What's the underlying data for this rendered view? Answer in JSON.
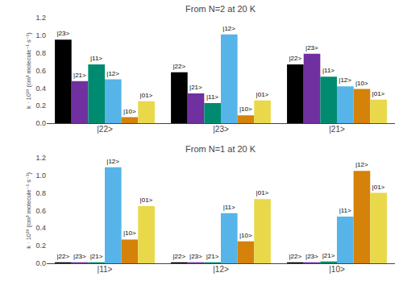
{
  "chart_data": [
    {
      "type": "bar",
      "title": "From N=2 at 20 K",
      "categories": [
        "|22>",
        "|23>",
        "|21>"
      ],
      "series": [
        {
          "color": "#000000",
          "values": [
            0.95,
            0.58,
            0.67
          ],
          "labels": [
            "|23>",
            "|22>",
            "|22>"
          ]
        },
        {
          "color": "#7030A0",
          "values": [
            0.48,
            0.34,
            0.79
          ],
          "labels": [
            "|21>",
            "|21>",
            "|23>"
          ]
        },
        {
          "color": "#008B70",
          "values": [
            0.67,
            0.23,
            0.53
          ],
          "labels": [
            "|11>",
            "|11>",
            "|11>"
          ]
        },
        {
          "color": "#56B4E9",
          "values": [
            0.5,
            1.01,
            0.42
          ],
          "labels": [
            "|12>",
            "|12>",
            "|12>"
          ]
        },
        {
          "color": "#D4820A",
          "values": [
            0.07,
            0.09,
            0.39
          ],
          "labels": [
            "|10>",
            "|10>",
            "|10>"
          ]
        },
        {
          "color": "#E8D84A",
          "values": [
            0.25,
            0.26,
            0.27
          ],
          "labels": [
            "|01>",
            "|01>",
            "|01>"
          ]
        }
      ],
      "ylabel": "k · 10¹⁰ (cm³ molecule⁻¹ s⁻¹)",
      "ylim": [
        0,
        1.2
      ],
      "yticks": [
        {
          "value": 0,
          "label": "0.0"
        },
        0.2,
        0.4,
        0.6,
        0.8,
        {
          "value": 1.0,
          "label": "1.0"
        },
        1.2
      ],
      "grid": false
    },
    {
      "type": "bar",
      "title": "From N=1 at 20 K",
      "categories": [
        "|11>",
        "|12>",
        "|10>"
      ],
      "series": [
        {
          "color": "#000000",
          "values": [
            0.01,
            0.01,
            0.01
          ],
          "labels": [
            "|22>",
            "|22>",
            "|22>"
          ]
        },
        {
          "color": "#7030A0",
          "values": [
            0.005,
            0.005,
            0.005
          ],
          "labels": [
            "|23>",
            "|23>",
            "|23>"
          ]
        },
        {
          "color": "#008B70",
          "values": [
            0.01,
            0.01,
            0.02
          ],
          "labels": [
            "|21>",
            "|21>",
            "|21>"
          ]
        },
        {
          "color": "#56B4E9",
          "values": [
            1.09,
            0.57,
            0.53
          ],
          "labels": [
            "|12>",
            "|11>",
            "|11>"
          ]
        },
        {
          "color": "#D4820A",
          "values": [
            0.27,
            0.25,
            1.05
          ],
          "labels": [
            "|10>",
            "|10>",
            "|12>"
          ]
        },
        {
          "color": "#E8D84A",
          "values": [
            0.65,
            0.73,
            0.8
          ],
          "labels": [
            "|01>",
            "|01>",
            "|01>"
          ]
        }
      ],
      "ylabel": "k · 10¹⁰ (cm³ molecule⁻¹ s⁻¹)",
      "ylim": [
        0,
        1.2
      ],
      "yticks": [
        {
          "value": 0,
          "label": "0.0"
        },
        0.2,
        0.4,
        0.6,
        0.8,
        {
          "value": 1.0,
          "label": "1.0"
        },
        1.2
      ],
      "grid": false
    }
  ]
}
